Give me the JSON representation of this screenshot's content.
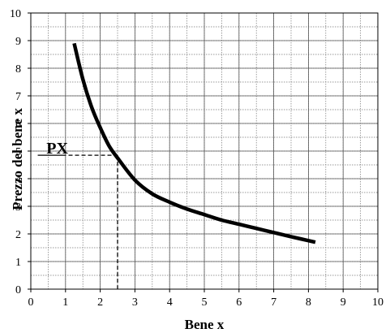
{
  "chart_data": {
    "type": "line",
    "title": "",
    "xlabel": "Bene x",
    "ylabel": "Prezzo del bene x",
    "xlim": [
      0,
      10
    ],
    "ylim": [
      0,
      10
    ],
    "xticks": [
      "0",
      "1",
      "2",
      "3",
      "4",
      "5",
      "6",
      "7",
      "8",
      "9",
      "10"
    ],
    "yticks": [
      "0",
      "1",
      "2",
      "3",
      "4",
      "5",
      "6",
      "7",
      "8",
      "9",
      "10"
    ],
    "grid": true,
    "minor_grid": true,
    "legend": "none",
    "series": [
      {
        "color": "#000000",
        "points": [
          [
            1.25,
            8.9
          ],
          [
            1.5,
            7.6
          ],
          [
            1.75,
            6.6
          ],
          [
            2.0,
            5.85
          ],
          [
            2.25,
            5.2
          ],
          [
            2.5,
            4.75
          ],
          [
            3.0,
            3.95
          ],
          [
            3.5,
            3.45
          ],
          [
            4.0,
            3.15
          ],
          [
            4.5,
            2.9
          ],
          [
            5.0,
            2.7
          ],
          [
            5.5,
            2.5
          ],
          [
            6.0,
            2.35
          ],
          [
            6.5,
            2.2
          ],
          [
            7.0,
            2.05
          ],
          [
            7.5,
            1.9
          ],
          [
            8.2,
            1.7
          ]
        ]
      }
    ],
    "annotations": [
      {
        "text": "PX",
        "x": 2.5,
        "y": 4.85,
        "dashed_guides": true
      }
    ]
  }
}
